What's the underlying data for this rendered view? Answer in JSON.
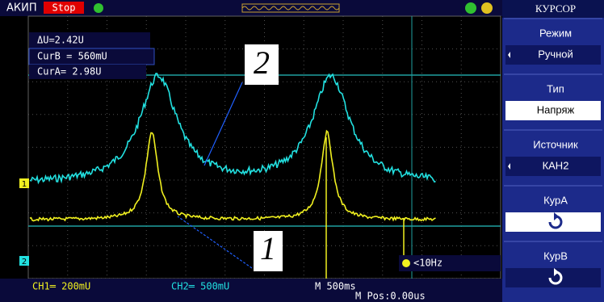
{
  "top_bar": {
    "brand": "АКИП",
    "status": "Stop"
  },
  "cursor_readout": {
    "delta": "ΔU=2.42U",
    "cur_b": "CurB = 560mU",
    "cur_a": "CurA= 2.98U"
  },
  "annotations": [
    "2",
    "1"
  ],
  "channel_markers": [
    "1",
    "2"
  ],
  "trigger": "<10Hz",
  "bottom_bar": {
    "ch1": "CH1═ 200mU",
    "ch2": "CH2═ 500mU",
    "timebase": "M 500ms",
    "position": "M Pos:0.00us"
  },
  "menu": {
    "title": "КУРСОР",
    "items": [
      {
        "label": "Режим",
        "value": "Ручной"
      },
      {
        "label": "Тип",
        "value": "Напряж"
      },
      {
        "label": "Источник",
        "value": "КАН2"
      },
      {
        "label": "КурA"
      },
      {
        "label": "КурB"
      }
    ]
  }
}
